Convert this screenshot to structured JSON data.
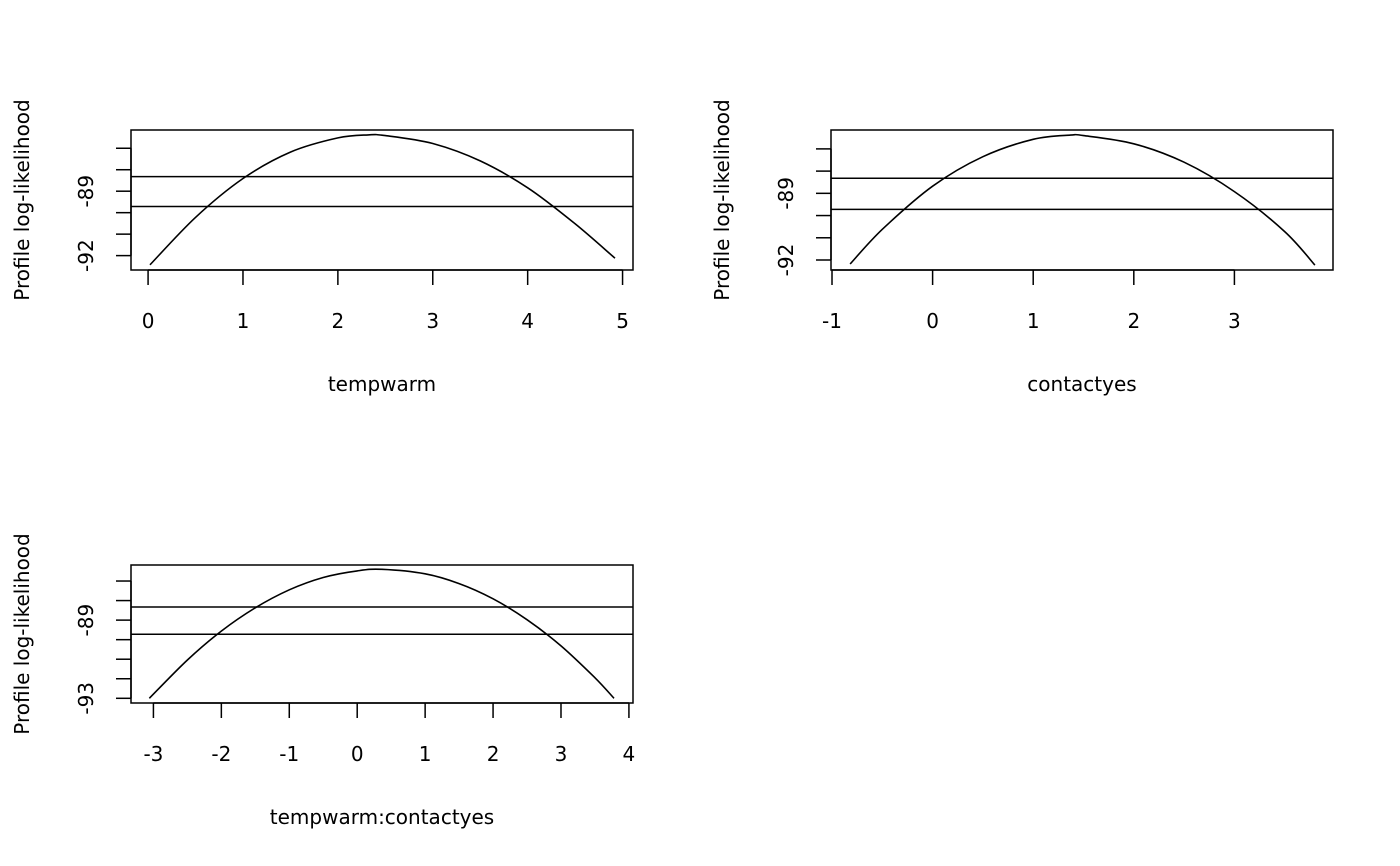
{
  "chart_data": [
    {
      "type": "line",
      "xlabel": "tempwarm",
      "ylabel": "Profile log-likelihood",
      "xlim": [
        -0.18,
        5.11
      ],
      "ylim": [
        -92.67,
        -86.15
      ],
      "x_ticks": [
        0,
        1,
        2,
        3,
        4,
        5
      ],
      "x_tick_labels": [
        "0",
        "1",
        "2",
        "3",
        "4",
        "5"
      ],
      "y_ticks": [
        -92,
        -91,
        -90,
        -89,
        -88,
        -87
      ],
      "y_tick_labels": [
        "-92",
        "",
        "",
        "-89",
        "",
        ""
      ],
      "hlines": [
        -88.32,
        -89.71
      ],
      "grid": false,
      "x": [
        0.02,
        0.5,
        1.0,
        1.5,
        2.0,
        2.32,
        2.5,
        3.0,
        3.5,
        4.0,
        4.5,
        4.92
      ],
      "y": [
        -92.43,
        -90.22,
        -88.41,
        -87.18,
        -86.52,
        -86.38,
        -86.41,
        -86.78,
        -87.59,
        -88.84,
        -90.52,
        -92.12
      ]
    },
    {
      "type": "line",
      "xlabel": "contactyes",
      "ylabel": "Profile log-likelihood",
      "xlim": [
        -1.01,
        3.98
      ],
      "ylim": [
        -92.45,
        -86.15
      ],
      "x_ticks": [
        -1,
        0,
        1,
        2,
        3
      ],
      "x_tick_labels": [
        "-1",
        "0",
        "1",
        "2",
        "3"
      ],
      "y_ticks": [
        -92,
        -91,
        -90,
        -89,
        -88,
        -87
      ],
      "y_tick_labels": [
        "-92",
        "",
        "",
        "-89",
        "",
        ""
      ],
      "hlines": [
        -88.32,
        -89.72
      ],
      "grid": false,
      "x": [
        -0.82,
        -0.5,
        0.0,
        0.5,
        1.0,
        1.37,
        1.5,
        2.0,
        2.5,
        3.0,
        3.5,
        3.8
      ],
      "y": [
        -92.18,
        -90.62,
        -88.68,
        -87.35,
        -86.57,
        -86.38,
        -86.4,
        -86.77,
        -87.6,
        -88.92,
        -90.72,
        -92.23
      ]
    },
    {
      "type": "line",
      "xlabel": "tempwarm:contactyes",
      "ylabel": "Profile log-likelihood",
      "xlim": [
        -3.33,
        4.06
      ],
      "ylim": [
        -93.24,
        -86.18
      ],
      "x_ticks": [
        -3,
        -2,
        -1,
        0,
        1,
        2,
        3,
        4
      ],
      "x_tick_labels": [
        "-3",
        "-2",
        "-1",
        "0",
        "1",
        "2",
        "3",
        "4"
      ],
      "y_ticks": [
        -93,
        -92,
        -91,
        -90,
        -89,
        -88,
        -87
      ],
      "y_tick_labels": [
        "-93",
        "",
        "",
        "",
        "-89",
        "",
        ""
      ],
      "hlines": [
        -88.33,
        -89.72
      ],
      "grid": false,
      "x": [
        -3.06,
        -2.5,
        -2.0,
        -1.5,
        -1.0,
        -0.5,
        0.0,
        0.365,
        1.0,
        1.5,
        2.0,
        2.5,
        3.0,
        3.5,
        3.78
      ],
      "y": [
        -93.0,
        -91.04,
        -89.56,
        -88.37,
        -87.45,
        -86.82,
        -86.48,
        -86.4,
        -86.63,
        -87.13,
        -87.91,
        -88.98,
        -90.32,
        -91.95,
        -93.0
      ]
    }
  ]
}
